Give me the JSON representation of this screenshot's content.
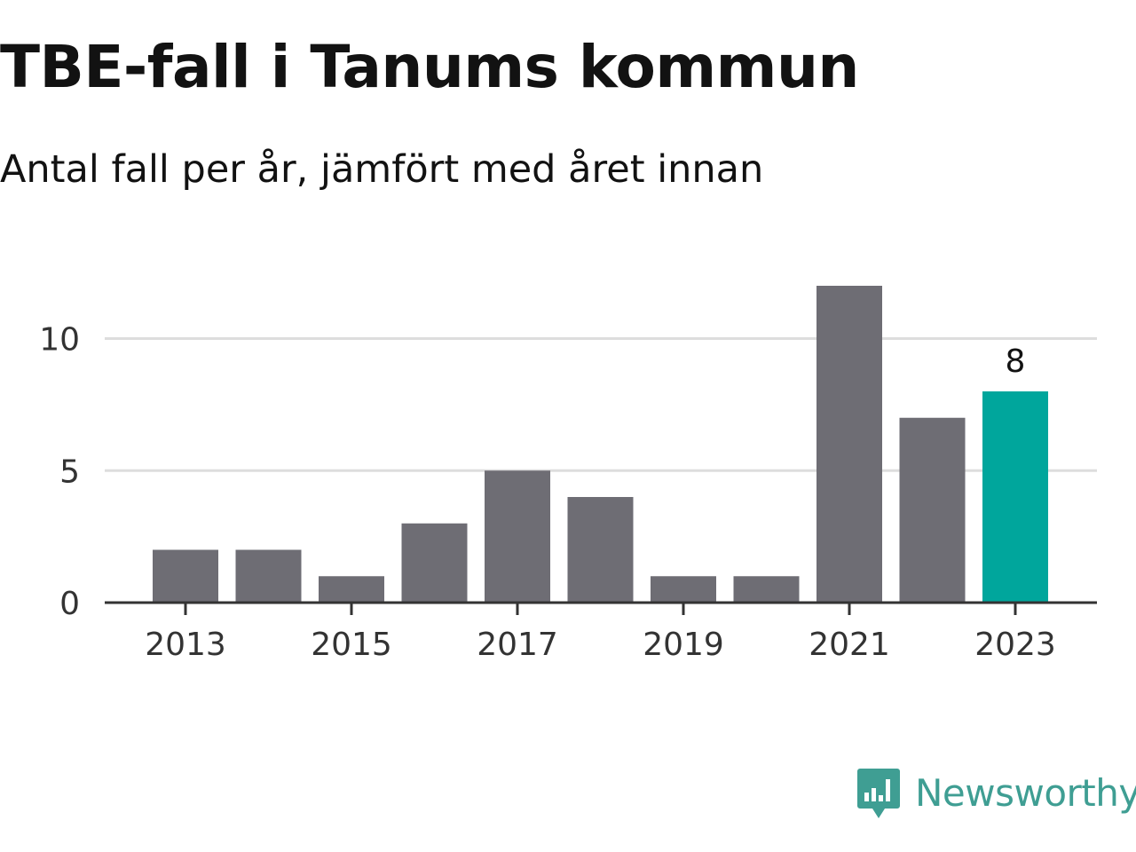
{
  "header": {
    "title": "TBE-fall i Tanums kommun",
    "subtitle": "Antal fall per år, jämfört med året innan"
  },
  "branding": {
    "logo_text": "Newsworthy",
    "logo_icon": "bar-chart-speech-bubble-icon",
    "logo_color": "#3f9e93"
  },
  "chart_data": {
    "type": "bar",
    "categories": [
      "2013",
      "2014",
      "2015",
      "2016",
      "2017",
      "2018",
      "2019",
      "2020",
      "2021",
      "2022",
      "2023"
    ],
    "values": [
      2,
      2,
      1,
      3,
      5,
      4,
      1,
      1,
      12,
      7,
      8
    ],
    "x_tick_labels": [
      "2013",
      "2015",
      "2017",
      "2019",
      "2021",
      "2023"
    ],
    "y_ticks": [
      0,
      5,
      10
    ],
    "ylim": [
      0,
      12
    ],
    "grid": true,
    "highlight": {
      "category": "2023",
      "label": "8"
    },
    "colors": {
      "bar": "#6e6d74",
      "highlight": "#00a69c",
      "grid": "#dddddd",
      "axis": "#333333"
    }
  }
}
